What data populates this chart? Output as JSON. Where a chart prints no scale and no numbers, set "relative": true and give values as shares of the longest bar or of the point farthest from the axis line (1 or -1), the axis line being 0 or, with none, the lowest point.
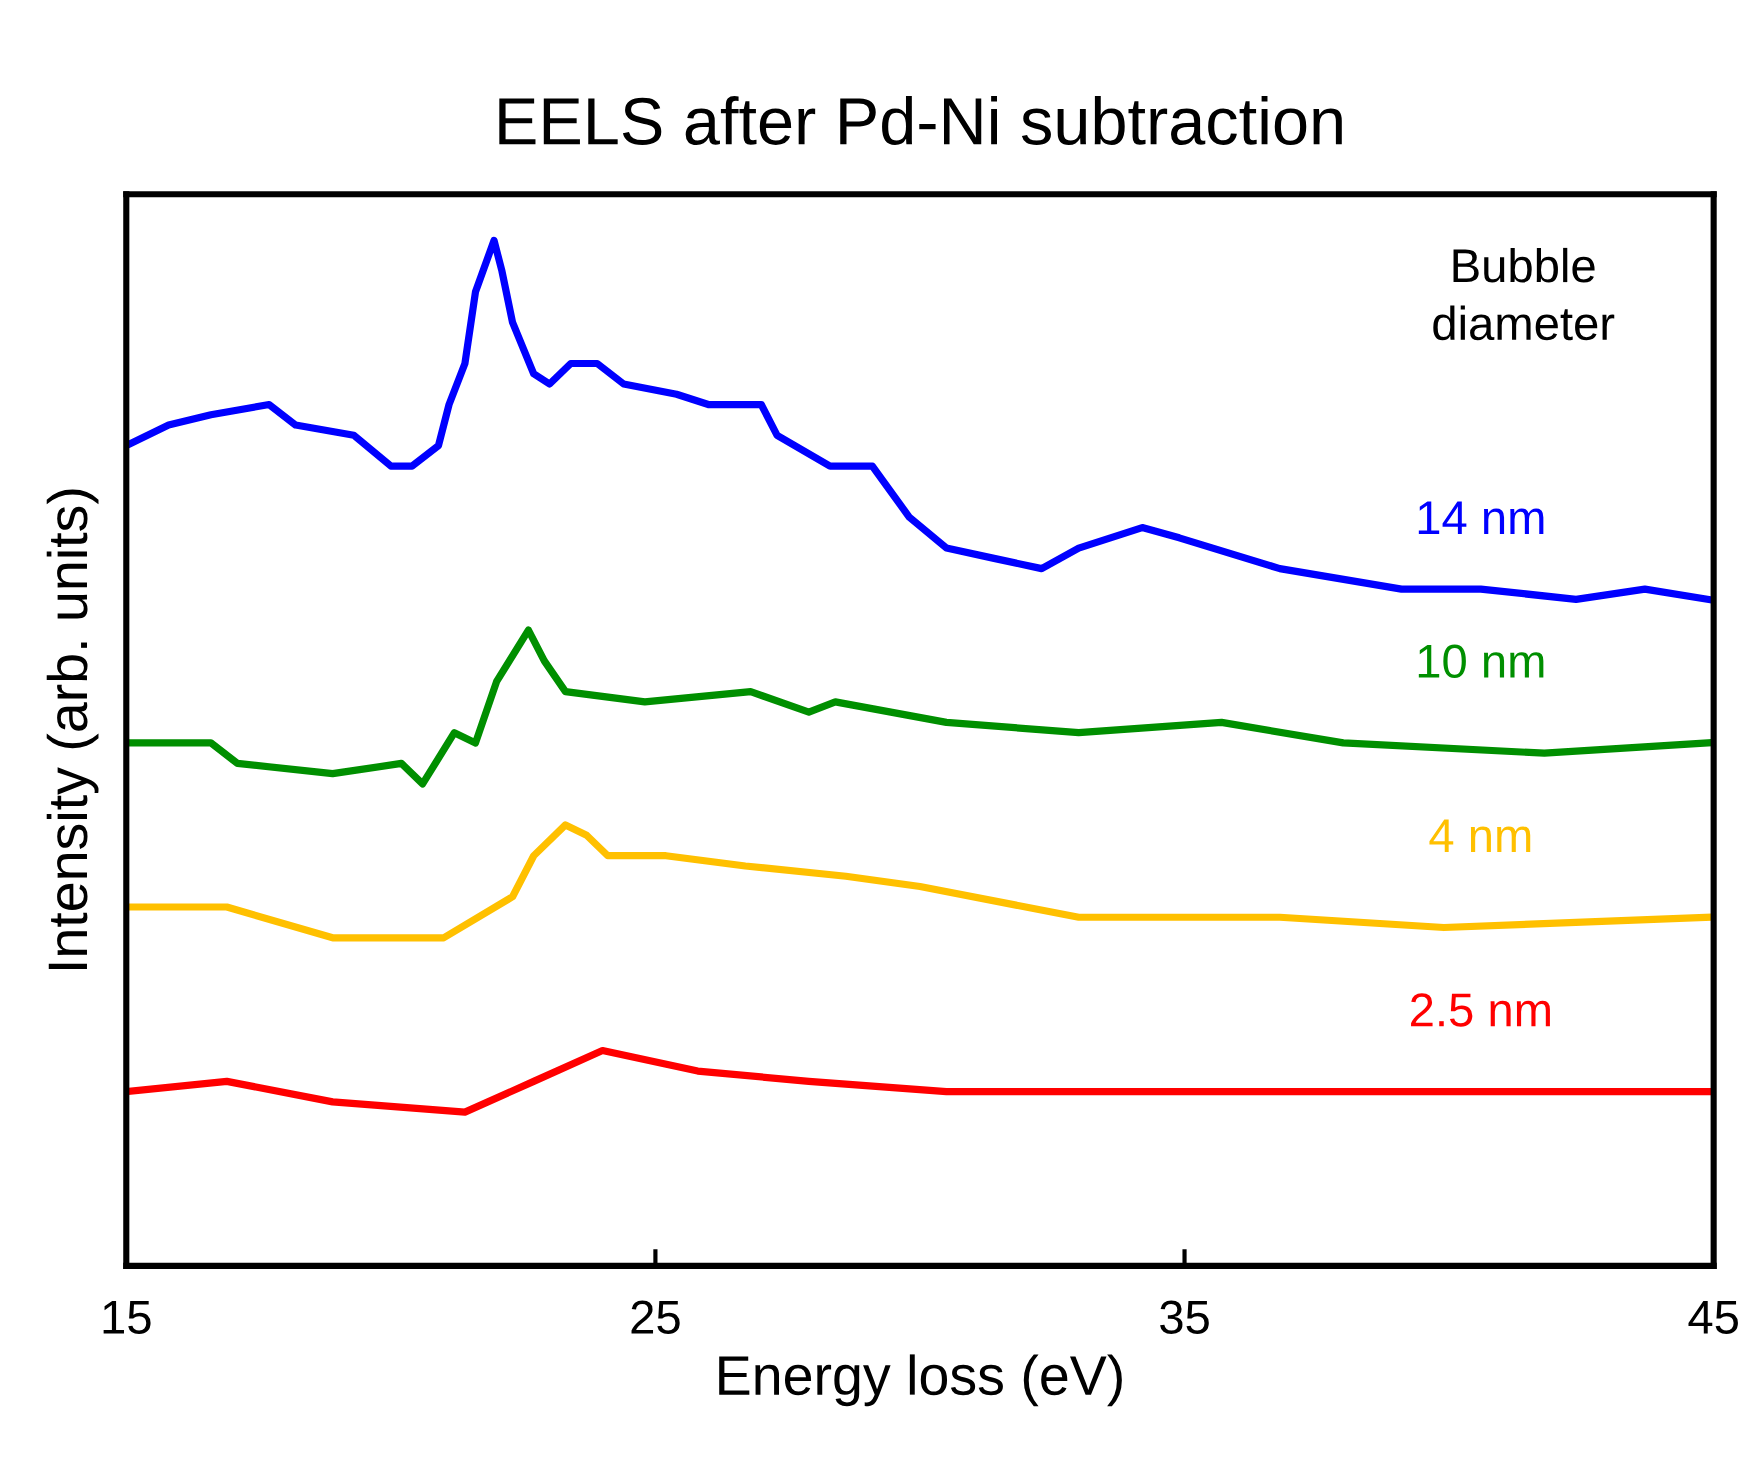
{
  "chart_data": {
    "type": "line",
    "title": "EELS after Pd-Ni subtraction",
    "xlabel": "Energy loss (eV)",
    "ylabel": "Intensity (arb. units)",
    "relative": true,
    "xlim": [
      15,
      45
    ],
    "xticks": [
      15,
      25,
      35,
      45
    ],
    "grid": false,
    "legend": false,
    "line_style": "solid",
    "marker": "none",
    "annotations": [
      "Bubble\ndiameter"
    ],
    "series": [
      {
        "name": "14 nm",
        "color": "#0000ff",
        "x": [
          15.0,
          15.8,
          16.6,
          17.7,
          18.2,
          19.3,
          20.0,
          20.4,
          20.9,
          21.1,
          21.4,
          21.6,
          21.95,
          22.1,
          22.3,
          22.7,
          23.0,
          23.4,
          23.9,
          24.4,
          25.4,
          26.0,
          27.0,
          27.3,
          28.3,
          29.1,
          29.8,
          30.5,
          31.4,
          32.3,
          33.0,
          34.2,
          34.9,
          36.8,
          39.1,
          40.6,
          42.4,
          43.7,
          44.9
        ],
        "values": [
          0.8,
          0.82,
          0.83,
          0.84,
          0.82,
          0.81,
          0.78,
          0.78,
          0.8,
          0.84,
          0.88,
          0.95,
          1.0,
          0.97,
          0.92,
          0.87,
          0.86,
          0.88,
          0.88,
          0.86,
          0.85,
          0.84,
          0.84,
          0.81,
          0.78,
          0.78,
          0.73,
          0.7,
          0.69,
          0.68,
          0.7,
          0.72,
          0.71,
          0.68,
          0.66,
          0.66,
          0.65,
          0.66,
          0.65
        ]
      },
      {
        "name": "10 nm",
        "color": "#008f00",
        "x": [
          15.0,
          16.6,
          17.1,
          18.9,
          20.2,
          20.6,
          21.2,
          21.6,
          22.0,
          22.6,
          22.9,
          23.3,
          24.8,
          26.8,
          27.9,
          28.4,
          30.5,
          33.0,
          35.7,
          38.0,
          41.8,
          44.9
        ],
        "values": [
          0.51,
          0.51,
          0.49,
          0.48,
          0.49,
          0.47,
          0.52,
          0.51,
          0.57,
          0.62,
          0.59,
          0.56,
          0.55,
          0.56,
          0.54,
          0.55,
          0.53,
          0.52,
          0.53,
          0.51,
          0.5,
          0.51
        ]
      },
      {
        "name": "4 nm",
        "color": "#ffc000",
        "x": [
          15.0,
          16.9,
          18.9,
          21.0,
          22.3,
          22.7,
          23.3,
          23.7,
          24.1,
          25.2,
          26.7,
          28.6,
          30.0,
          33.0,
          36.8,
          39.9,
          44.9
        ],
        "values": [
          0.35,
          0.35,
          0.32,
          0.32,
          0.36,
          0.4,
          0.43,
          0.42,
          0.4,
          0.4,
          0.39,
          0.38,
          0.37,
          0.34,
          0.34,
          0.33,
          0.34
        ]
      },
      {
        "name": "2.5 nm",
        "color": "#ff0000",
        "x": [
          15.0,
          16.9,
          18.9,
          21.4,
          22.7,
          24.0,
          25.8,
          27.9,
          30.5,
          33.0,
          38.0,
          44.9
        ],
        "values": [
          0.17,
          0.18,
          0.16,
          0.15,
          0.18,
          0.21,
          0.19,
          0.18,
          0.17,
          0.17,
          0.17,
          0.17
        ]
      }
    ]
  }
}
